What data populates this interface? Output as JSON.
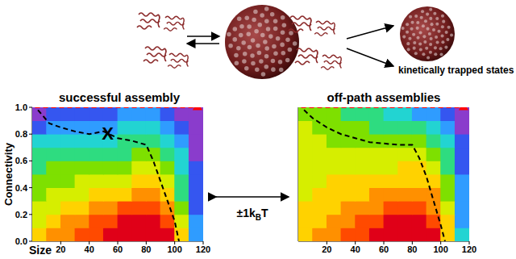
{
  "chart_data": [
    {
      "type": "heatmap",
      "title": "successful assembly",
      "xlabel": "Size",
      "ylabel": "Connectivity",
      "x": [
        5,
        15,
        25,
        35,
        45,
        55,
        65,
        75,
        85,
        95,
        105,
        115
      ],
      "y": [
        0.05,
        0.15,
        0.25,
        0.35,
        0.45,
        0.55,
        0.65,
        0.75,
        0.85,
        0.95
      ],
      "cells": [
        [
          3,
          2,
          2,
          1,
          1,
          0,
          0,
          0,
          0,
          0,
          3,
          8
        ],
        [
          4,
          3,
          2,
          2,
          1,
          1,
          0,
          0,
          0,
          1,
          4,
          8
        ],
        [
          4,
          4,
          3,
          3,
          2,
          2,
          1,
          1,
          1,
          2,
          5,
          9
        ],
        [
          5,
          4,
          4,
          4,
          3,
          3,
          3,
          2,
          2,
          3,
          6,
          9
        ],
        [
          5,
          5,
          5,
          4,
          4,
          4,
          4,
          3,
          3,
          4,
          6,
          9
        ],
        [
          6,
          5,
          5,
          5,
          5,
          5,
          5,
          4,
          4,
          5,
          7,
          9
        ],
        [
          6,
          6,
          6,
          6,
          6,
          6,
          6,
          5,
          5,
          6,
          7,
          10
        ],
        [
          7,
          7,
          7,
          7,
          7,
          7,
          6,
          6,
          6,
          7,
          8,
          10
        ],
        [
          9,
          8,
          8,
          8,
          8,
          8,
          7,
          7,
          7,
          8,
          9,
          10
        ],
        [
          10,
          9,
          9,
          9,
          9,
          9,
          8,
          8,
          8,
          9,
          10,
          10
        ]
      ],
      "color_range": [
        0,
        10
      ],
      "xlim": [
        0,
        120
      ],
      "ylim": [
        0,
        1
      ],
      "xticks": [
        20,
        40,
        60,
        80,
        100,
        120
      ],
      "yticks": [
        {
          "value": 0,
          "label": "0.0"
        },
        {
          "value": 0.2,
          "label": "0.2"
        },
        {
          "value": 0.4,
          "label": "0.4"
        },
        {
          "value": 0.6,
          "label": "0.6"
        },
        {
          "value": 0.8,
          "label": "0.8"
        },
        {
          "value": 1,
          "label": "1.0"
        }
      ],
      "series": [
        {
          "type": "line",
          "line_style": "dashed",
          "color": "#000000",
          "x": [
            4,
            12,
            20,
            30,
            40,
            50,
            60,
            70,
            80,
            85,
            90,
            95,
            100,
            103
          ],
          "values": [
            0.98,
            0.88,
            0.85,
            0.82,
            0.8,
            0.82,
            0.77,
            0.75,
            0.72,
            0.6,
            0.45,
            0.3,
            0.15,
            0
          ]
        },
        {
          "type": "line",
          "line_style": "dashed",
          "color": "#ff0000",
          "x": [
            2,
            115
          ],
          "values": [
            1,
            1
          ]
        },
        {
          "type": "scatter",
          "marker": "triangle",
          "color": "#ff0000",
          "x": [
            116
          ],
          "values": [
            1
          ]
        }
      ],
      "annotations": [
        {
          "text": "X",
          "x": 53,
          "y": 0.81
        }
      ]
    },
    {
      "type": "heatmap",
      "title": "off-path assemblies",
      "tick_labels": "x",
      "x": [
        5,
        15,
        25,
        35,
        45,
        55,
        65,
        75,
        85,
        95,
        105,
        115
      ],
      "y": [
        0.05,
        0.15,
        0.25,
        0.35,
        0.45,
        0.55,
        0.65,
        0.75,
        0.85,
        0.95
      ],
      "cells": [
        [
          3,
          2,
          2,
          1,
          1,
          0,
          0,
          0,
          0,
          0,
          3,
          7
        ],
        [
          3,
          3,
          2,
          2,
          1,
          1,
          0,
          0,
          0,
          1,
          3,
          8
        ],
        [
          3,
          3,
          3,
          2,
          2,
          2,
          1,
          1,
          1,
          2,
          4,
          8
        ],
        [
          4,
          3,
          3,
          3,
          3,
          2,
          2,
          2,
          2,
          2,
          5,
          8
        ],
        [
          4,
          4,
          3,
          3,
          3,
          3,
          3,
          3,
          3,
          3,
          5,
          8
        ],
        [
          4,
          4,
          4,
          4,
          4,
          4,
          4,
          3,
          3,
          4,
          6,
          9
        ],
        [
          4,
          4,
          4,
          4,
          4,
          4,
          4,
          4,
          4,
          5,
          6,
          9
        ],
        [
          4,
          4,
          5,
          5,
          5,
          5,
          5,
          5,
          5,
          6,
          7,
          9
        ],
        [
          4,
          5,
          5,
          5,
          5,
          6,
          6,
          6,
          6,
          7,
          8,
          10
        ],
        [
          5,
          5,
          5,
          6,
          6,
          6,
          7,
          7,
          8,
          8,
          9,
          10
        ]
      ],
      "color_range": [
        0,
        10
      ],
      "xlim": [
        0,
        120
      ],
      "ylim": [
        0,
        1
      ],
      "xticks": [
        20,
        40,
        60,
        80,
        100,
        120
      ],
      "series": [
        {
          "type": "line",
          "line_style": "dashed",
          "color": "#000000",
          "x": [
            4,
            10,
            20,
            30,
            40,
            50,
            60,
            70,
            80,
            85,
            90,
            95,
            100,
            103
          ],
          "values": [
            0.98,
            0.92,
            0.85,
            0.8,
            0.77,
            0.74,
            0.73,
            0.72,
            0.72,
            0.62,
            0.48,
            0.3,
            0.12,
            0
          ]
        },
        {
          "type": "line",
          "line_style": "dashed",
          "color": "#ff0000",
          "x": [
            2,
            115
          ],
          "values": [
            1,
            1
          ]
        },
        {
          "type": "scatter",
          "marker": "triangle",
          "color": "#ff0000",
          "x": [
            116
          ],
          "values": [
            1
          ]
        }
      ]
    }
  ],
  "annotations": [
    {
      "text": "kinetically trapped states"
    },
    {
      "text": "±1k",
      "subscript": "B",
      "suffix": "T"
    }
  ]
}
